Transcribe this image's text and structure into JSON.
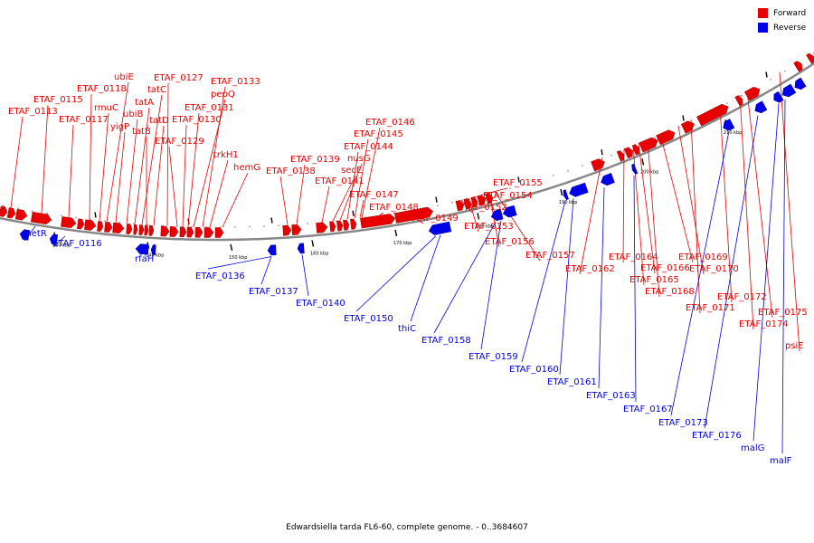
{
  "caption": "Edwardsiella tarda FL6-60, complete genome. - 0..3684607",
  "legend": [
    {
      "label": "Forward",
      "color": "#e80000"
    },
    {
      "label": "Reverse",
      "color": "#0000e8"
    }
  ],
  "colors": {
    "forward": "#e80000",
    "reverse": "#0000e8",
    "backbone": "#888888"
  },
  "ticks": [
    "130 kbp",
    "140 kbp",
    "150 kbp",
    "160 kbp",
    "170 kbp",
    "180 kbp",
    "190 kbp",
    "200 kbp",
    "210 kbp"
  ],
  "forward_labels": [
    "ETAF_0113",
    "ETAF_0115",
    "ETAF_0117",
    "ETAF_0118",
    "rmuC",
    "ubiE",
    "yigP",
    "ubiB",
    "tatA",
    "tatC",
    "tatB",
    "tatD",
    "ETAF_0127",
    "ETAF_0129",
    "ETAF_0130",
    "ETAF_0131",
    "pepQ",
    "ETAF_0133",
    "trkH1",
    "hemG",
    "ETAF_0138",
    "ETAF_0139",
    "ETAF_0141",
    "secE",
    "nusG",
    "ETAF_0144",
    "ETAF_0145",
    "ETAF_0146",
    "ETAF_0147",
    "ETAF_0148",
    "ETAF_0149",
    "ETAF_0152",
    "ETAF_0153",
    "ETAF_0154",
    "ETAF_0155",
    "ETAF_0156",
    "ETAF_0157",
    "ETAF_0162",
    "ETAF_0164",
    "ETAF_0165",
    "ETAF_0166",
    "ETAF_0168",
    "ETAF_0169",
    "ETAF_0170",
    "ETAF_0171",
    "ETAF_0172",
    "ETAF_0174",
    "ETAF_0175",
    "psiE"
  ],
  "reverse_labels": [
    "metR",
    "ETAF_0116",
    "rfaH",
    "ETAF_0136",
    "ETAF_0137",
    "ETAF_0140",
    "ETAF_0150",
    "thiC",
    "ETAF_0158",
    "ETAF_0159",
    "ETAF_0160",
    "ETAF_0161",
    "ETAF_0163",
    "ETAF_0167",
    "ETAF_0173",
    "ETAF_0176",
    "malG",
    "malF"
  ]
}
